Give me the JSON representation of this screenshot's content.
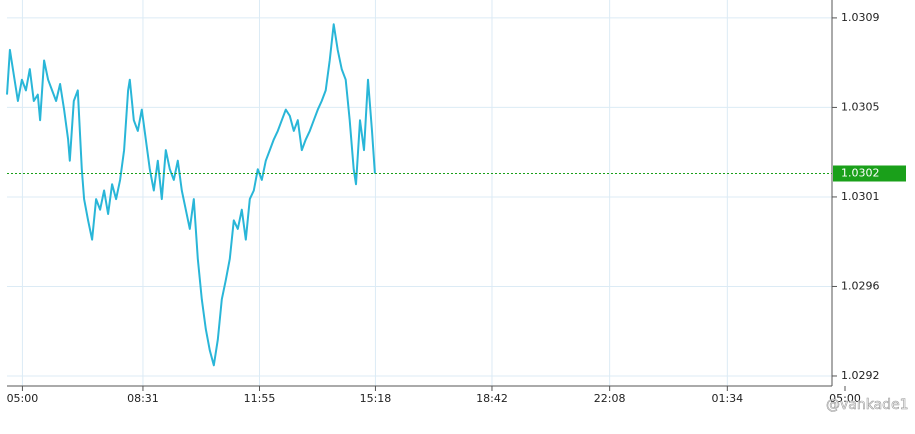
{
  "chart_data": {
    "type": "line",
    "x": [
      -27,
      -22,
      -15,
      -8,
      -1,
      6,
      13,
      20,
      27,
      31,
      38,
      45,
      52,
      59,
      66,
      73,
      80,
      83,
      90,
      97,
      104,
      108,
      115,
      122,
      129,
      136,
      143,
      150,
      157,
      164,
      171,
      178,
      185,
      188,
      195,
      202,
      209,
      216,
      223,
      230,
      237,
      244,
      251,
      258,
      265,
      272,
      279,
      286,
      293,
      300,
      307,
      314,
      321,
      328,
      335,
      342,
      349,
      356,
      363,
      370,
      377,
      384,
      391,
      398,
      405,
      412,
      419,
      426,
      433,
      440,
      447,
      454,
      461,
      468,
      475,
      482,
      489,
      496,
      503,
      510,
      517,
      524,
      531,
      538,
      545,
      552,
      559,
      566,
      573,
      580,
      584,
      591,
      598,
      605,
      612,
      617
    ],
    "series": [
      {
        "color": "#29b6d8",
        "values": [
          1.03054,
          1.03075,
          1.03063,
          1.03051,
          1.03061,
          1.03056,
          1.03066,
          1.03051,
          1.03054,
          1.03042,
          1.0307,
          1.03061,
          1.03056,
          1.03051,
          1.03059,
          1.03047,
          1.03033,
          1.03023,
          1.03051,
          1.03056,
          1.03019,
          1.03005,
          1.02995,
          1.02986,
          1.03005,
          1.03,
          1.03009,
          1.02998,
          1.03012,
          1.03005,
          1.03014,
          1.03028,
          1.03056,
          1.03061,
          1.03042,
          1.03037,
          1.03047,
          1.03033,
          1.03019,
          1.03009,
          1.03023,
          1.03005,
          1.03028,
          1.03019,
          1.03014,
          1.03023,
          1.03009,
          1.03,
          1.02991,
          1.03005,
          1.02977,
          1.02958,
          1.02944,
          1.02934,
          1.02927,
          1.02939,
          1.02958,
          1.02967,
          1.02977,
          1.02995,
          1.02991,
          1.03,
          1.02986,
          1.03005,
          1.03009,
          1.03019,
          1.03014,
          1.03023,
          1.03028,
          1.03033,
          1.03037,
          1.03042,
          1.03047,
          1.03044,
          1.03037,
          1.03042,
          1.03028,
          1.03033,
          1.03037,
          1.03042,
          1.03047,
          1.03051,
          1.03056,
          1.0307,
          1.03087,
          1.03075,
          1.03066,
          1.03061,
          1.03042,
          1.03019,
          1.03012,
          1.03042,
          1.03028,
          1.03061,
          1.03037,
          1.03017
        ]
      }
    ],
    "xlim": [
      -27,
      1440
    ],
    "xticks": [
      {
        "value": 0,
        "label": "05:00"
      },
      {
        "value": 211,
        "label": "08:31"
      },
      {
        "value": 415,
        "label": "11:55"
      },
      {
        "value": 618,
        "label": "15:18"
      },
      {
        "value": 822,
        "label": "18:42"
      },
      {
        "value": 1028,
        "label": "22:08"
      },
      {
        "value": 1234,
        "label": "01:34"
      },
      {
        "value": 1440,
        "label": "05:00"
      }
    ],
    "ylim": [
      1.029173,
      1.030984
    ],
    "yticks": [
      {
        "value": 1.0309,
        "label": "1.0309"
      },
      {
        "value": 1.03048,
        "label": "1.0305"
      },
      {
        "value": 1.03006,
        "label": "1.0301"
      },
      {
        "value": 1.02964,
        "label": "1.0296"
      },
      {
        "value": 1.02922,
        "label": "1.0292"
      }
    ],
    "last_price": {
      "value": 1.03017,
      "label": "1.0302",
      "color": "#1aa01a"
    },
    "grid": true,
    "watermark": "@vankade1"
  }
}
